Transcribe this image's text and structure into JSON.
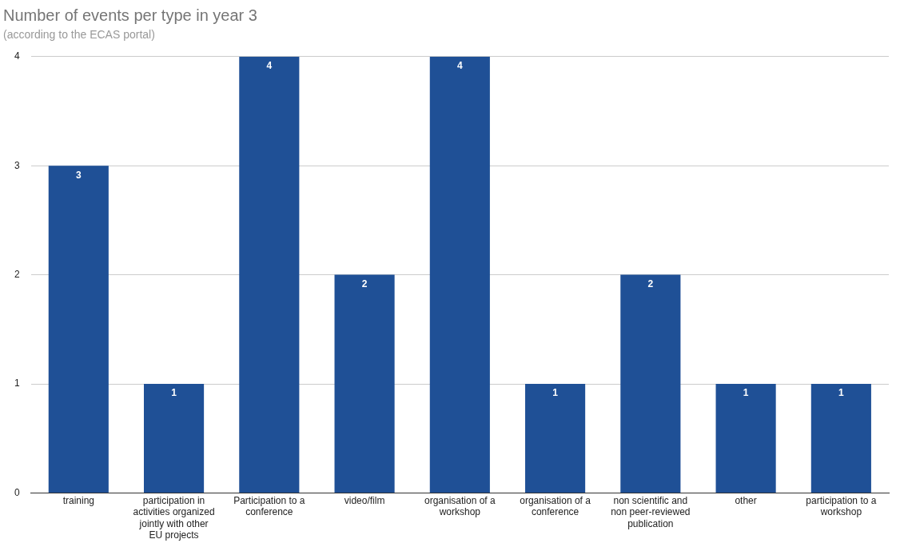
{
  "chart_data": {
    "type": "bar",
    "title": "Number of events per type in year 3",
    "subtitle": "(according to the ECAS portal)",
    "categories": [
      "training",
      "participation in activities organized jointly with other EU projects",
      "Participation to a conference",
      "video/film",
      "organisation of a workshop",
      "organisation of a conference",
      "non scientific and non peer-reviewed publication",
      "other",
      "participation to a workshop"
    ],
    "values": [
      3,
      1,
      4,
      2,
      4,
      1,
      2,
      1,
      1
    ],
    "color": "#1f5096",
    "ylim": [
      0,
      4
    ],
    "yticks": [
      0,
      1,
      2,
      3,
      4
    ],
    "grid": "y",
    "legend": false,
    "data_labels": true
  }
}
